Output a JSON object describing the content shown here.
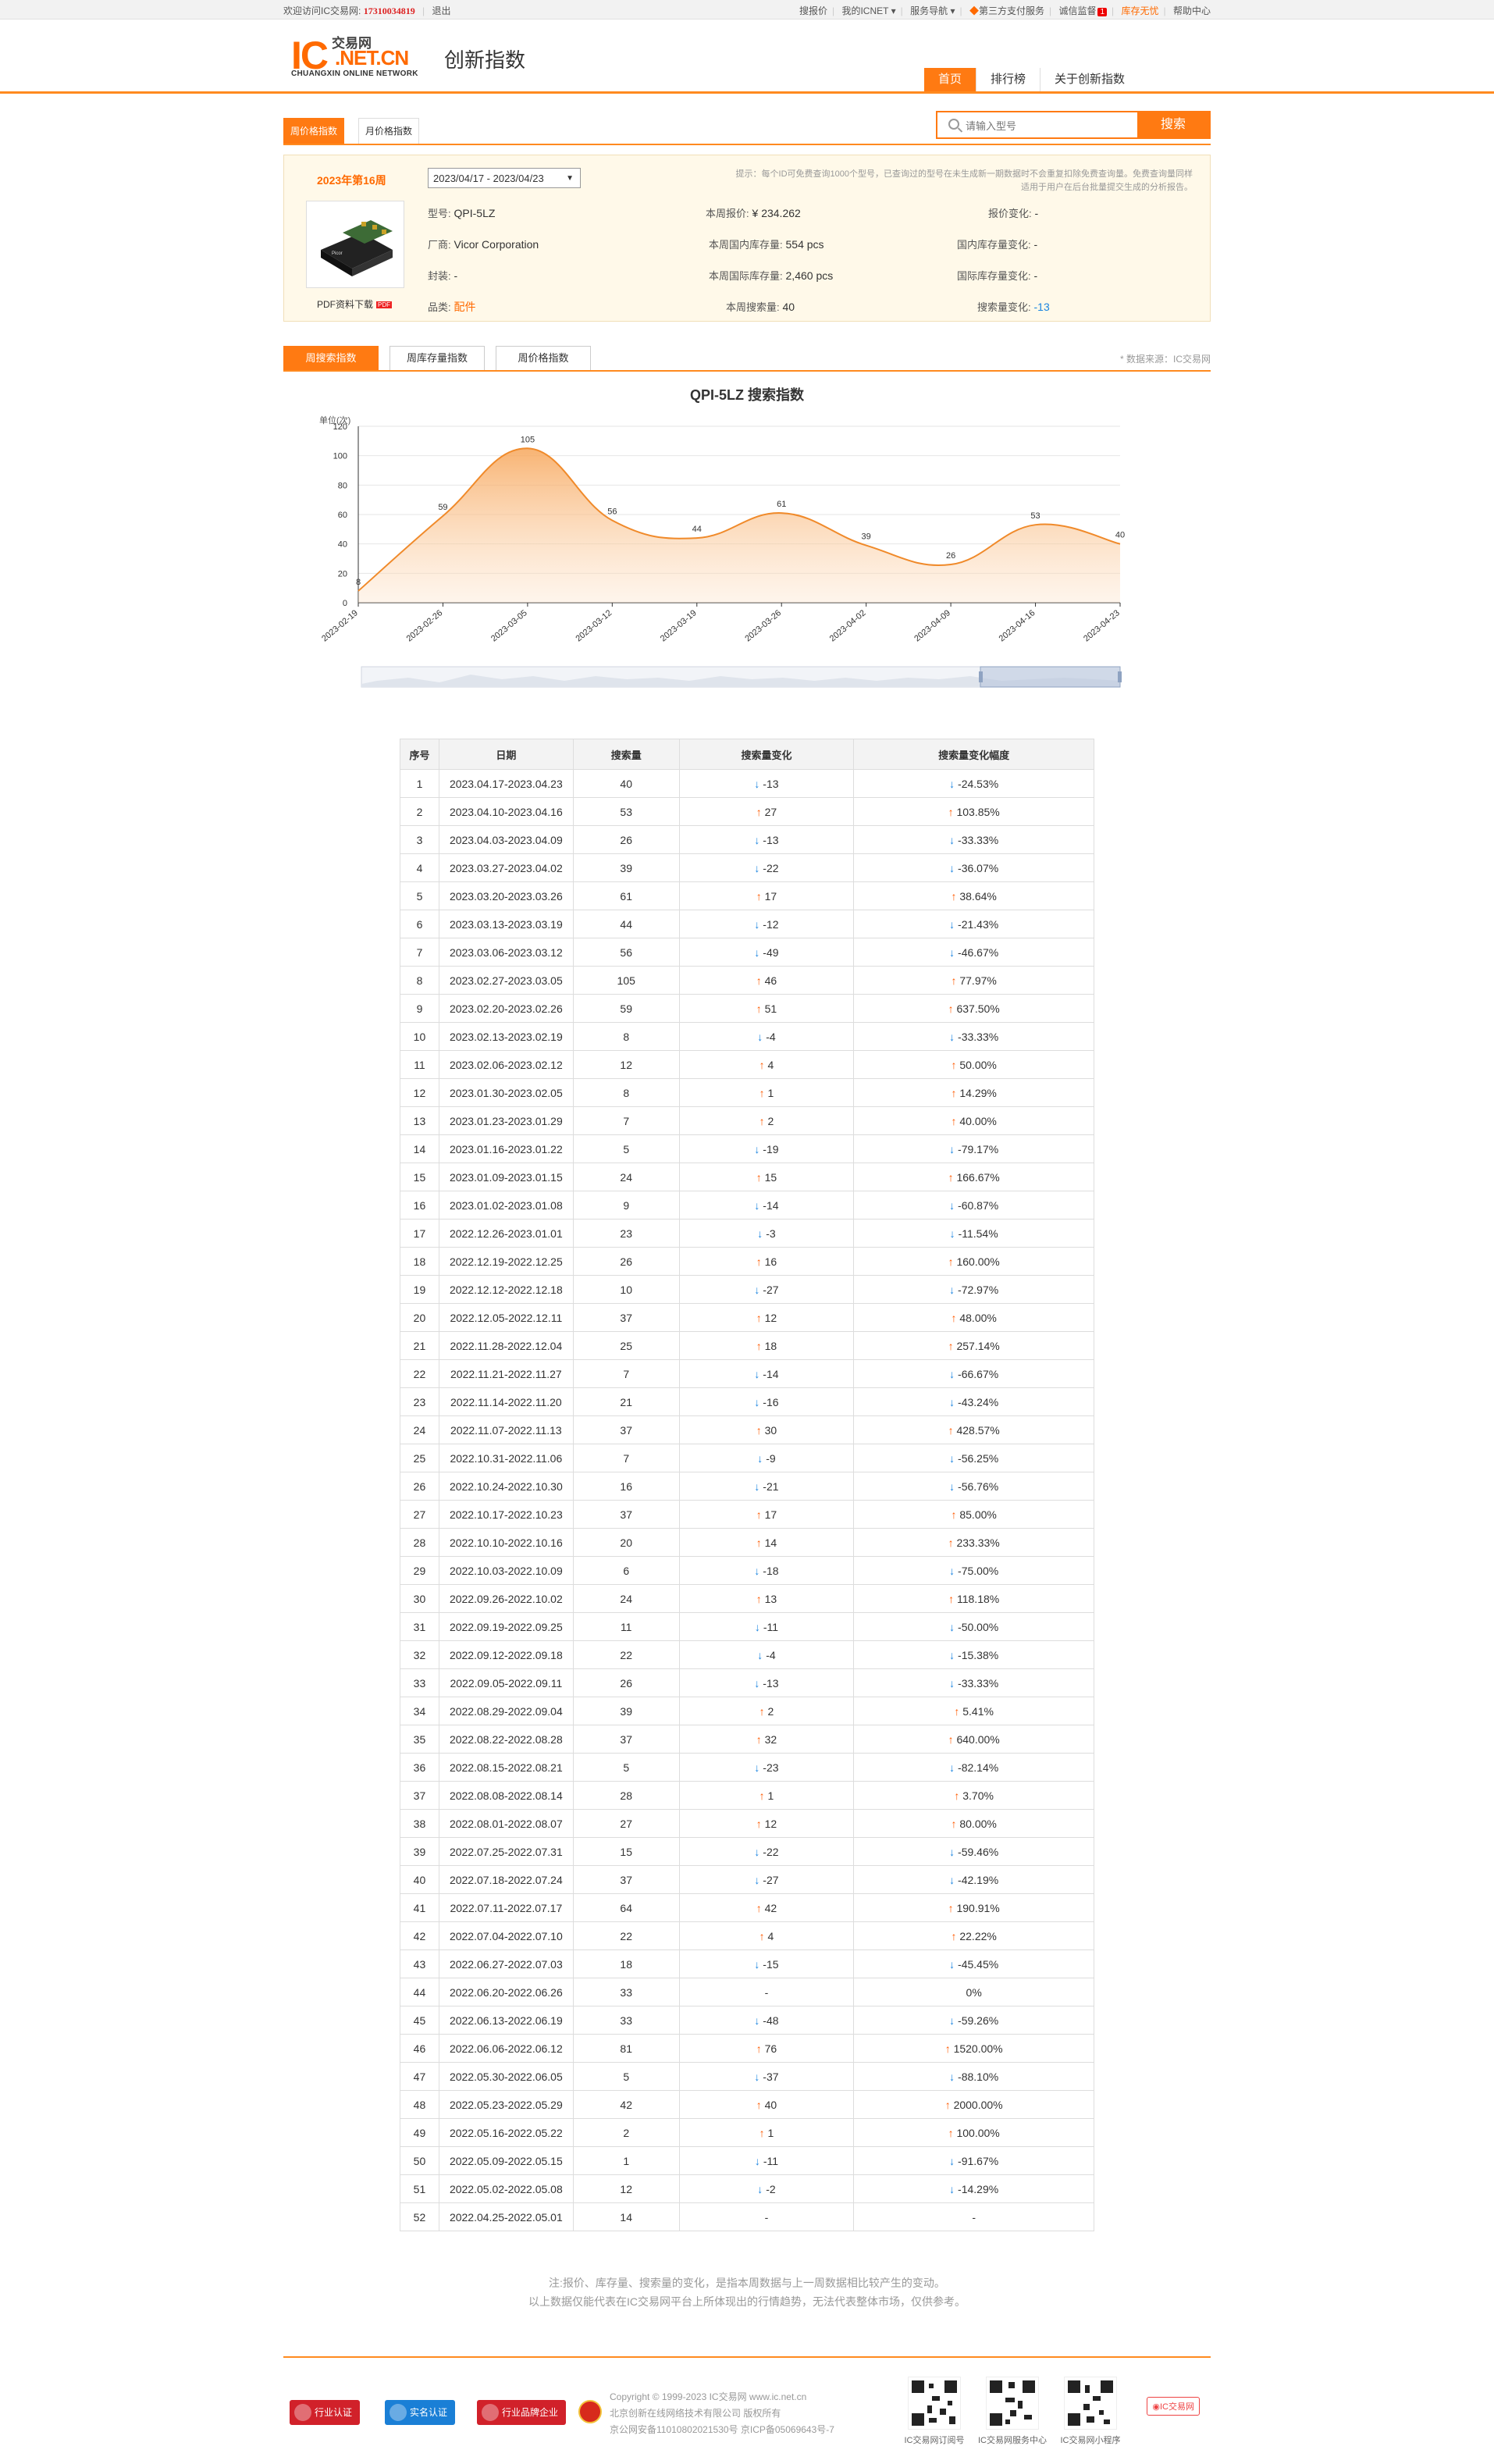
{
  "topbar": {
    "welcome": "欢迎访问IC交易网:",
    "phone": "17310034819",
    "logout": "退出",
    "links": [
      "搜报价",
      "我的ICNET",
      "服务导航",
      "第三方支付服务",
      "诚信监督"
    ],
    "badge": "1",
    "stock_free": "库存无忧",
    "help": "帮助中心"
  },
  "header": {
    "logo_ic": "IC",
    "logo_cn": "交易网",
    "logo_net": ".NET.CN",
    "logo_sub": "CHUANGXIN ONLINE NETWORK",
    "site_title": "创新指数",
    "nav": [
      "首页",
      "排行榜",
      "关于创新指数"
    ]
  },
  "subtabs": [
    "周价格指数",
    "月价格指数"
  ],
  "search": {
    "placeholder": "请输入型号",
    "button": "搜索"
  },
  "info": {
    "week_label": "2023年第16周",
    "date_range": "2023/04/17 - 2023/04/23",
    "tip": "提示：每个ID可免费查询1000个型号，已查询过的型号在未生成新一期数据时不会重复扣除免费查询量。免费查询量同样适用于用户在后台批量提交生成的分析报告。",
    "pdf_label": "PDF资料下载",
    "pdf_icon": "PDF",
    "model_label": "型号:",
    "model": "QPI-5LZ",
    "maker_label": "厂商:",
    "maker": "Vicor Corporation",
    "package_label": "封装:",
    "package": "-",
    "category_label": "品类:",
    "category": "配件",
    "price_label": "本周报价:",
    "price": "¥ 234.262",
    "dom_stock_label": "本周国内库存量:",
    "dom_stock": "554  pcs",
    "intl_stock_label": "本周国际库存量:",
    "intl_stock": "2,460  pcs",
    "search_label": "本周搜索量:",
    "search_count": "40",
    "price_chg_label": "报价变化:",
    "price_chg": "-",
    "dom_chg_label": "国内库存量变化:",
    "dom_chg": "-",
    "intl_chg_label": "国际库存量变化:",
    "intl_chg": "-",
    "search_chg_label": "搜索量变化:",
    "search_chg": "-13"
  },
  "chart_tabs": [
    "周搜索指数",
    "周库存量指数",
    "周价格指数"
  ],
  "source": "* 数据来源：IC交易网",
  "chart_data": {
    "type": "area",
    "title": "QPI-5LZ 搜索指数",
    "ylabel": "单位(次)",
    "ylim": [
      0,
      120
    ],
    "yticks": [
      0,
      20,
      40,
      60,
      80,
      100,
      120
    ],
    "x": [
      "2023-02-19",
      "2023-02-26",
      "2023-03-05",
      "2023-03-12",
      "2023-03-19",
      "2023-03-26",
      "2023-04-02",
      "2023-04-09",
      "2023-04-16",
      "2023-04-23"
    ],
    "values": [
      8,
      59,
      105,
      56,
      44,
      61,
      39,
      26,
      53,
      40
    ],
    "grid": true,
    "color": "#f08a2a"
  },
  "table": {
    "headers": [
      "序号",
      "日期",
      "搜索量",
      "搜索量变化",
      "搜索量变化幅度"
    ],
    "rows": [
      [
        "1",
        "2023.04.17-2023.04.23",
        "40",
        "-13",
        "-24.53%"
      ],
      [
        "2",
        "2023.04.10-2023.04.16",
        "53",
        "27",
        "103.85%"
      ],
      [
        "3",
        "2023.04.03-2023.04.09",
        "26",
        "-13",
        "-33.33%"
      ],
      [
        "4",
        "2023.03.27-2023.04.02",
        "39",
        "-22",
        "-36.07%"
      ],
      [
        "5",
        "2023.03.20-2023.03.26",
        "61",
        "17",
        "38.64%"
      ],
      [
        "6",
        "2023.03.13-2023.03.19",
        "44",
        "-12",
        "-21.43%"
      ],
      [
        "7",
        "2023.03.06-2023.03.12",
        "56",
        "-49",
        "-46.67%"
      ],
      [
        "8",
        "2023.02.27-2023.03.05",
        "105",
        "46",
        "77.97%"
      ],
      [
        "9",
        "2023.02.20-2023.02.26",
        "59",
        "51",
        "637.50%"
      ],
      [
        "10",
        "2023.02.13-2023.02.19",
        "8",
        "-4",
        "-33.33%"
      ],
      [
        "11",
        "2023.02.06-2023.02.12",
        "12",
        "4",
        "50.00%"
      ],
      [
        "12",
        "2023.01.30-2023.02.05",
        "8",
        "1",
        "14.29%"
      ],
      [
        "13",
        "2023.01.23-2023.01.29",
        "7",
        "2",
        "40.00%"
      ],
      [
        "14",
        "2023.01.16-2023.01.22",
        "5",
        "-19",
        "-79.17%"
      ],
      [
        "15",
        "2023.01.09-2023.01.15",
        "24",
        "15",
        "166.67%"
      ],
      [
        "16",
        "2023.01.02-2023.01.08",
        "9",
        "-14",
        "-60.87%"
      ],
      [
        "17",
        "2022.12.26-2023.01.01",
        "23",
        "-3",
        "-11.54%"
      ],
      [
        "18",
        "2022.12.19-2022.12.25",
        "26",
        "16",
        "160.00%"
      ],
      [
        "19",
        "2022.12.12-2022.12.18",
        "10",
        "-27",
        "-72.97%"
      ],
      [
        "20",
        "2022.12.05-2022.12.11",
        "37",
        "12",
        "48.00%"
      ],
      [
        "21",
        "2022.11.28-2022.12.04",
        "25",
        "18",
        "257.14%"
      ],
      [
        "22",
        "2022.11.21-2022.11.27",
        "7",
        "-14",
        "-66.67%"
      ],
      [
        "23",
        "2022.11.14-2022.11.20",
        "21",
        "-16",
        "-43.24%"
      ],
      [
        "24",
        "2022.11.07-2022.11.13",
        "37",
        "30",
        "428.57%"
      ],
      [
        "25",
        "2022.10.31-2022.11.06",
        "7",
        "-9",
        "-56.25%"
      ],
      [
        "26",
        "2022.10.24-2022.10.30",
        "16",
        "-21",
        "-56.76%"
      ],
      [
        "27",
        "2022.10.17-2022.10.23",
        "37",
        "17",
        "85.00%"
      ],
      [
        "28",
        "2022.10.10-2022.10.16",
        "20",
        "14",
        "233.33%"
      ],
      [
        "29",
        "2022.10.03-2022.10.09",
        "6",
        "-18",
        "-75.00%"
      ],
      [
        "30",
        "2022.09.26-2022.10.02",
        "24",
        "13",
        "118.18%"
      ],
      [
        "31",
        "2022.09.19-2022.09.25",
        "11",
        "-11",
        "-50.00%"
      ],
      [
        "32",
        "2022.09.12-2022.09.18",
        "22",
        "-4",
        "-15.38%"
      ],
      [
        "33",
        "2022.09.05-2022.09.11",
        "26",
        "-13",
        "-33.33%"
      ],
      [
        "34",
        "2022.08.29-2022.09.04",
        "39",
        "2",
        "5.41%"
      ],
      [
        "35",
        "2022.08.22-2022.08.28",
        "37",
        "32",
        "640.00%"
      ],
      [
        "36",
        "2022.08.15-2022.08.21",
        "5",
        "-23",
        "-82.14%"
      ],
      [
        "37",
        "2022.08.08-2022.08.14",
        "28",
        "1",
        "3.70%"
      ],
      [
        "38",
        "2022.08.01-2022.08.07",
        "27",
        "12",
        "80.00%"
      ],
      [
        "39",
        "2022.07.25-2022.07.31",
        "15",
        "-22",
        "-59.46%"
      ],
      [
        "40",
        "2022.07.18-2022.07.24",
        "37",
        "-27",
        "-42.19%"
      ],
      [
        "41",
        "2022.07.11-2022.07.17",
        "64",
        "42",
        "190.91%"
      ],
      [
        "42",
        "2022.07.04-2022.07.10",
        "22",
        "4",
        "22.22%"
      ],
      [
        "43",
        "2022.06.27-2022.07.03",
        "18",
        "-15",
        "-45.45%"
      ],
      [
        "44",
        "2022.06.20-2022.06.26",
        "33",
        "-",
        "0%"
      ],
      [
        "45",
        "2022.06.13-2022.06.19",
        "33",
        "-48",
        "-59.26%"
      ],
      [
        "46",
        "2022.06.06-2022.06.12",
        "81",
        "76",
        "1520.00%"
      ],
      [
        "47",
        "2022.05.30-2022.06.05",
        "5",
        "-37",
        "-88.10%"
      ],
      [
        "48",
        "2022.05.23-2022.05.29",
        "42",
        "40",
        "2000.00%"
      ],
      [
        "49",
        "2022.05.16-2022.05.22",
        "2",
        "1",
        "100.00%"
      ],
      [
        "50",
        "2022.05.09-2022.05.15",
        "1",
        "-11",
        "-91.67%"
      ],
      [
        "51",
        "2022.05.02-2022.05.08",
        "12",
        "-2",
        "-14.29%"
      ],
      [
        "52",
        "2022.04.25-2022.05.01",
        "14",
        "-",
        "-"
      ]
    ]
  },
  "notes": [
    "注:报价、库存量、搜索量的变化，是指本周数据与上一周数据相比较产生的变动。",
    "以上数据仅能代表在IC交易网平台上所体现出的行情趋势，无法代表整体市场，仅供参考。"
  ],
  "footer": {
    "badges": [
      "行业认证",
      "实名认证",
      "行业品牌企业"
    ],
    "copyright": [
      "Copyright © 1999-2023 IC交易网 www.ic.net.cn",
      "北京创新在线网络技术有限公司 版权所有",
      "京公网安备11010802021530号   京ICP备05069643号-7"
    ],
    "qr_captions": [
      "IC交易网订阅号",
      "IC交易网服务中心",
      "IC交易网小程序"
    ],
    "weibo": "IC交易网"
  }
}
